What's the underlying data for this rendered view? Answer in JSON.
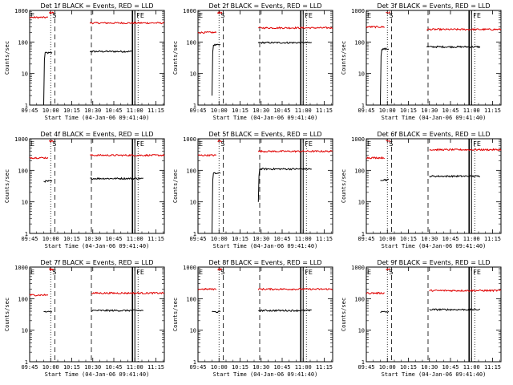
{
  "panels": [
    {
      "title": "Det 1f BLACK = Events, RED = LLD",
      "ylabel": "Counts/sec",
      "xlabel": "Start Time (04-Jan-06 09:41:40)"
    },
    {
      "title": "Det 2f BLACK = Events, RED = LLD",
      "ylabel": "Counts/sec",
      "xlabel": "Start Time (04-Jan-06 09:41:40)"
    },
    {
      "title": "Det 3f BLACK = Events, RED = LLD",
      "ylabel": "Counts/sec",
      "xlabel": "Start Time (04-Jan-06 09:41:40)"
    },
    {
      "title": "Det 4f BLACK = Events, RED = LLD",
      "ylabel": "Counts/sec",
      "xlabel": "Start Time (04-Jan-06 09:41:40)"
    },
    {
      "title": "Det 5f BLACK = Events, RED = LLD",
      "ylabel": "Counts/sec",
      "xlabel": "Start Time (04-Jan-06 09:41:40)"
    },
    {
      "title": "Det 6f BLACK = Events, RED = LLD",
      "ylabel": "Counts/sec",
      "xlabel": "Start Time (04-Jan-06 09:41:40)"
    },
    {
      "title": "Det 7f BLACK = Events, RED = LLD",
      "ylabel": "Counts/sec",
      "xlabel": "Start Time (04-Jan-06 09:41:40)"
    },
    {
      "title": "Det 8f BLACK = Events, RED = LLD",
      "ylabel": "Counts/sec",
      "xlabel": "Start Time (04-Jan-06 09:41:40)"
    },
    {
      "title": "Det 9f BLACK = Events, RED = LLD",
      "ylabel": "Counts/sec",
      "xlabel": "Start Time (04-Jan-06 09:41:40)"
    }
  ],
  "colors": {
    "events": "#000000",
    "lld": "#e00000",
    "axes": "#000000"
  },
  "chart_data": [
    {
      "type": "line",
      "title": "Det 1f BLACK = Events, RED = LLD",
      "xlabel": "Start Time (04-Jan-06 09:41:40)",
      "ylabel": "Counts/sec",
      "x_ticks": [
        "09:45",
        "10:00",
        "10:15",
        "10:30",
        "10:45",
        "11:00",
        "11:15"
      ],
      "y_ticks": [
        "1",
        "10",
        "100",
        "1000"
      ],
      "yscale": "log",
      "xlim": [
        "09:45",
        "11:21"
      ],
      "ylim": [
        1,
        1000
      ],
      "markers": {
        "E": "09:45",
        "S": "10:00",
        "FE": "11:00"
      },
      "vlines": {
        "dotted": [
          "10:00"
        ],
        "dashed": [
          "10:03",
          "10:29"
        ],
        "solid": [
          "10:59",
          "11:00"
        ],
        "dotted_end": "11:01"
      },
      "series": [
        {
          "name": "BLACK = Events",
          "segments": [
            {
              "t0": "09:55",
              "t1": "10:01",
              "start": 1,
              "level": 45
            },
            {
              "t0": "10:28",
              "t1": "10:58",
              "level": 50
            }
          ]
        },
        {
          "name": "RED = LLD",
          "segments": [
            {
              "t0": "09:45",
              "t1": "09:58",
              "level": 600
            },
            {
              "t0": "09:59",
              "t1": "10:02",
              "level": 850
            },
            {
              "t0": "10:28",
              "t1": "11:21",
              "level": 400
            }
          ]
        }
      ]
    },
    {
      "type": "line",
      "title": "Det 2f BLACK = Events, RED = LLD",
      "xlabel": "Start Time (04-Jan-06 09:41:40)",
      "ylabel": "Counts/sec",
      "x_ticks": [
        "09:45",
        "10:00",
        "10:15",
        "10:30",
        "10:45",
        "11:00",
        "11:15"
      ],
      "y_ticks": [
        "1",
        "10",
        "100",
        "1000"
      ],
      "yscale": "log",
      "xlim": [
        "09:45",
        "11:21"
      ],
      "ylim": [
        1,
        1000
      ],
      "markers": {
        "E": "09:45",
        "S": "10:00",
        "FE": "11:00"
      },
      "series": [
        {
          "name": "BLACK = Events",
          "segments": [
            {
              "t0": "09:55",
              "t1": "10:01",
              "start": 2,
              "level": 80
            },
            {
              "t0": "10:28",
              "t1": "11:06",
              "level": 95
            }
          ]
        },
        {
          "name": "RED = LLD",
          "segments": [
            {
              "t0": "09:45",
              "t1": "09:58",
              "level": 200
            },
            {
              "t0": "09:59",
              "t1": "10:02",
              "level": 850
            },
            {
              "t0": "10:28",
              "t1": "11:21",
              "level": 280
            }
          ]
        }
      ]
    },
    {
      "type": "line",
      "title": "Det 3f BLACK = Events, RED = LLD",
      "xlabel": "Start Time (04-Jan-06 09:41:40)",
      "ylabel": "Counts/sec",
      "x_ticks": [
        "09:45",
        "10:00",
        "10:15",
        "10:30",
        "10:45",
        "11:00",
        "11:15"
      ],
      "y_ticks": [
        "1",
        "10",
        "100",
        "1000"
      ],
      "yscale": "log",
      "xlim": [
        "09:45",
        "11:21"
      ],
      "ylim": [
        1,
        1000
      ],
      "markers": {
        "E": "09:45",
        "S": "10:00",
        "FE": "11:00"
      },
      "series": [
        {
          "name": "BLACK = Events",
          "segments": [
            {
              "t0": "09:55",
              "t1": "10:01",
              "start": 1,
              "level": 60
            },
            {
              "t0": "10:28",
              "t1": "11:06",
              "level": 70
            }
          ]
        },
        {
          "name": "RED = LLD",
          "segments": [
            {
              "t0": "09:45",
              "t1": "09:58",
              "level": 300
            },
            {
              "t0": "09:59",
              "t1": "10:02",
              "level": 850
            },
            {
              "t0": "10:28",
              "t1": "11:21",
              "level": 250
            }
          ]
        }
      ]
    },
    {
      "type": "line",
      "title": "Det 4f BLACK = Events, RED = LLD",
      "xlabel": "Start Time (04-Jan-06 09:41:40)",
      "ylabel": "Counts/sec",
      "x_ticks": [
        "09:45",
        "10:00",
        "10:15",
        "10:30",
        "10:45",
        "11:00",
        "11:15"
      ],
      "y_ticks": [
        "1",
        "10",
        "100",
        "1000"
      ],
      "yscale": "log",
      "xlim": [
        "09:45",
        "11:21"
      ],
      "ylim": [
        1,
        1000
      ],
      "markers": {
        "E": "09:45",
        "S": "10:00",
        "FE": "11:00"
      },
      "series": [
        {
          "name": "BLACK = Events",
          "segments": [
            {
              "t0": "09:55",
              "t1": "10:01",
              "level": 45
            },
            {
              "t0": "10:28",
              "t1": "11:06",
              "level": 55
            }
          ]
        },
        {
          "name": "RED = LLD",
          "segments": [
            {
              "t0": "09:45",
              "t1": "09:58",
              "level": 250
            },
            {
              "t0": "09:59",
              "t1": "10:02",
              "level": 850
            },
            {
              "t0": "10:28",
              "t1": "11:21",
              "level": 300
            }
          ]
        }
      ]
    },
    {
      "type": "line",
      "title": "Det 5f BLACK = Events, RED = LLD",
      "xlabel": "Start Time (04-Jan-06 09:41:40)",
      "ylabel": "Counts/sec",
      "x_ticks": [
        "09:45",
        "10:00",
        "10:15",
        "10:30",
        "10:45",
        "11:00",
        "11:15"
      ],
      "y_ticks": [
        "1",
        "10",
        "100",
        "1000"
      ],
      "yscale": "log",
      "xlim": [
        "09:45",
        "11:21"
      ],
      "ylim": [
        1,
        1000
      ],
      "markers": {
        "E": "09:45",
        "S": "10:00",
        "FE": "11:00"
      },
      "series": [
        {
          "name": "BLACK = Events",
          "segments": [
            {
              "t0": "09:55",
              "t1": "10:01",
              "start": 1,
              "level": 80
            },
            {
              "t0": "10:28",
              "t1": "11:06",
              "start": 10,
              "level": 110
            }
          ]
        },
        {
          "name": "RED = LLD",
          "segments": [
            {
              "t0": "09:45",
              "t1": "09:58",
              "level": 300
            },
            {
              "t0": "09:59",
              "t1": "10:02",
              "level": 850
            },
            {
              "t0": "10:28",
              "t1": "11:21",
              "level": 400
            }
          ]
        }
      ]
    },
    {
      "type": "line",
      "title": "Det 6f BLACK = Events, RED = LLD",
      "xlabel": "Start Time (04-Jan-06 09:41:40)",
      "ylabel": "Counts/sec",
      "x_ticks": [
        "09:45",
        "10:00",
        "10:15",
        "10:30",
        "10:45",
        "11:00",
        "11:15"
      ],
      "y_ticks": [
        "1",
        "10",
        "100",
        "1000"
      ],
      "yscale": "log",
      "xlim": [
        "09:45",
        "11:21"
      ],
      "ylim": [
        1,
        1000
      ],
      "markers": {
        "E": "09:45",
        "S": "10:00",
        "FE": "11:00"
      },
      "series": [
        {
          "name": "BLACK = Events",
          "segments": [
            {
              "t0": "09:55",
              "t1": "10:01",
              "level": 50
            },
            {
              "t0": "10:30",
              "t1": "11:06",
              "level": 65
            }
          ]
        },
        {
          "name": "RED = LLD",
          "segments": [
            {
              "t0": "09:45",
              "t1": "09:58",
              "level": 250
            },
            {
              "t0": "09:59",
              "t1": "10:02",
              "level": 850
            },
            {
              "t0": "10:30",
              "t1": "11:21",
              "level": 450
            }
          ]
        }
      ]
    },
    {
      "type": "line",
      "title": "Det 7f BLACK = Events, RED = LLD",
      "xlabel": "Start Time (04-Jan-06 09:41:40)",
      "ylabel": "Counts/sec",
      "x_ticks": [
        "09:45",
        "10:00",
        "10:15",
        "10:30",
        "10:45",
        "11:00",
        "11:15"
      ],
      "y_ticks": [
        "1",
        "10",
        "100",
        "1000"
      ],
      "yscale": "log",
      "xlim": [
        "09:45",
        "11:21"
      ],
      "ylim": [
        1,
        1000
      ],
      "markers": {
        "E": "09:45",
        "S": "10:00",
        "FE": "11:00"
      },
      "series": [
        {
          "name": "BLACK = Events",
          "segments": [
            {
              "t0": "09:55",
              "t1": "10:01",
              "level": 38
            },
            {
              "t0": "10:29",
              "t1": "11:06",
              "level": 42
            }
          ]
        },
        {
          "name": "RED = LLD",
          "segments": [
            {
              "t0": "09:45",
              "t1": "09:58",
              "level": 130
            },
            {
              "t0": "09:59",
              "t1": "10:02",
              "level": 850
            },
            {
              "t0": "10:29",
              "t1": "11:21",
              "level": 150
            }
          ]
        }
      ]
    },
    {
      "type": "line",
      "title": "Det 8f BLACK = Events, RED = LLD",
      "xlabel": "Start Time (04-Jan-06 09:41:40)",
      "ylabel": "Counts/sec",
      "x_ticks": [
        "09:45",
        "10:00",
        "10:15",
        "10:30",
        "10:45",
        "11:00",
        "11:15"
      ],
      "y_ticks": [
        "1",
        "10",
        "100",
        "1000"
      ],
      "yscale": "log",
      "xlim": [
        "09:45",
        "11:21"
      ],
      "ylim": [
        1,
        1000
      ],
      "markers": {
        "E": "09:45",
        "S": "10:00",
        "FE": "11:00"
      },
      "series": [
        {
          "name": "BLACK = Events",
          "segments": [
            {
              "t0": "09:55",
              "t1": "10:01",
              "level": 38
            },
            {
              "t0": "10:28",
              "t1": "11:06",
              "level": 42
            }
          ]
        },
        {
          "name": "RED = LLD",
          "segments": [
            {
              "t0": "09:45",
              "t1": "09:58",
              "level": 200
            },
            {
              "t0": "09:59",
              "t1": "10:02",
              "level": 850
            },
            {
              "t0": "10:28",
              "t1": "11:21",
              "level": 200
            }
          ]
        }
      ]
    },
    {
      "type": "line",
      "title": "Det 9f BLACK = Events, RED = LLD",
      "xlabel": "Start Time (04-Jan-06 09:41:40)",
      "ylabel": "Counts/sec",
      "x_ticks": [
        "09:45",
        "10:00",
        "10:15",
        "10:30",
        "10:45",
        "11:00",
        "11:15"
      ],
      "y_ticks": [
        "1",
        "10",
        "100",
        "1000"
      ],
      "yscale": "log",
      "xlim": [
        "09:45",
        "11:21"
      ],
      "ylim": [
        1,
        1000
      ],
      "markers": {
        "E": "09:45",
        "S": "10:00",
        "FE": "11:00"
      },
      "series": [
        {
          "name": "BLACK = Events",
          "segments": [
            {
              "t0": "09:55",
              "t1": "10:01",
              "level": 38
            },
            {
              "t0": "10:30",
              "t1": "11:06",
              "level": 45
            }
          ]
        },
        {
          "name": "RED = LLD",
          "segments": [
            {
              "t0": "09:45",
              "t1": "09:58",
              "level": 150
            },
            {
              "t0": "09:59",
              "t1": "10:02",
              "level": 850
            },
            {
              "t0": "10:30",
              "t1": "11:21",
              "level": 180
            }
          ]
        }
      ]
    }
  ]
}
